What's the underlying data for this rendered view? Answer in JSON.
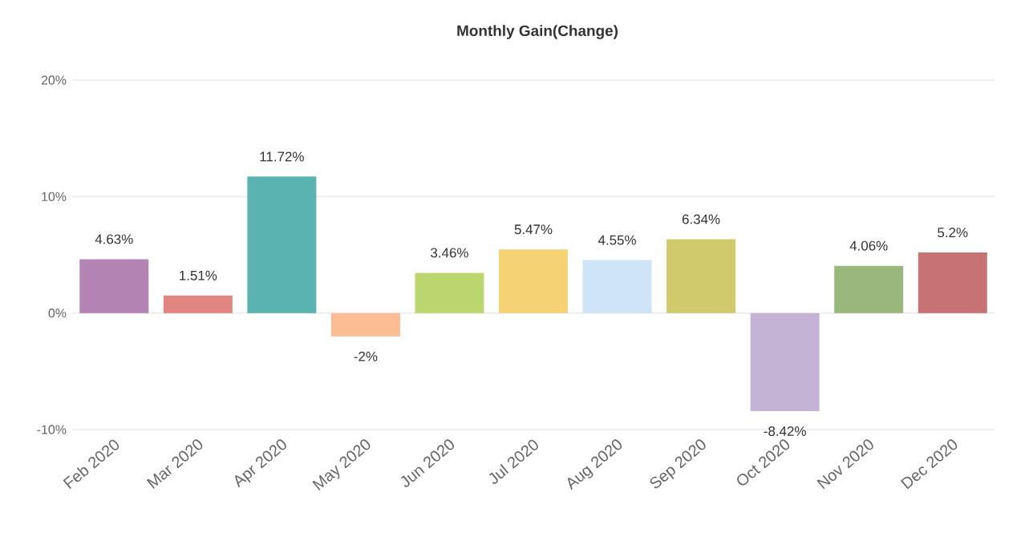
{
  "chart_data": {
    "type": "bar",
    "title": "Monthly Gain(Change)",
    "categories": [
      "Feb 2020",
      "Mar 2020",
      "Apr 2020",
      "May 2020",
      "Jun 2020",
      "Jul 2020",
      "Aug 2020",
      "Sep 2020",
      "Oct 2020",
      "Nov 2020",
      "Dec 2020"
    ],
    "values": [
      4.63,
      1.51,
      11.72,
      -2,
      3.46,
      5.47,
      4.55,
      6.34,
      -8.42,
      4.06,
      5.2
    ],
    "value_labels": [
      "4.63%",
      "1.51%",
      "11.72%",
      "-2%",
      "3.46%",
      "5.47%",
      "4.55%",
      "6.34%",
      "-8.42%",
      "4.06%",
      "5.2%"
    ],
    "colors": [
      "#b383b4",
      "#e0857f",
      "#5bb3b1",
      "#fdbd94",
      "#bcd66f",
      "#f5d374",
      "#cfe4f7",
      "#d0ca6c",
      "#c5b3d6",
      "#9ab77d",
      "#c77274"
    ],
    "ylim": [
      -10,
      20
    ],
    "yticks": [
      {
        "value": -10,
        "label": "-10%"
      },
      {
        "value": 0,
        "label": "0%"
      },
      {
        "value": 10,
        "label": "10%"
      },
      {
        "value": 20,
        "label": "20%"
      }
    ],
    "grid": "y"
  }
}
